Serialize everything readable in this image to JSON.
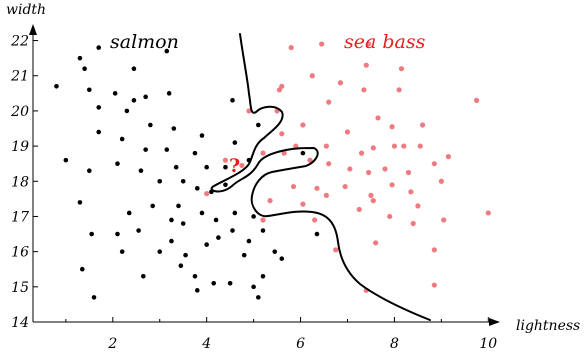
{
  "chart_data": {
    "type": "scatter",
    "xlabel": "lightness",
    "ylabel": "width",
    "xlim": [
      0.3,
      10.1
    ],
    "ylim": [
      14,
      22.3
    ],
    "x_ticks": [
      2,
      4,
      6,
      8,
      10
    ],
    "y_ticks": [
      14,
      15,
      16,
      17,
      18,
      19,
      20,
      21,
      22
    ],
    "grid": false,
    "annotations": [
      {
        "text": "salmon",
        "color": "#000000"
      },
      {
        "text": "sea bass",
        "color": "#e8201e"
      }
    ],
    "query_point": {
      "x": 4.42,
      "y": 18.15,
      "label": "?",
      "color": "#e8201e"
    },
    "series": [
      {
        "name": "salmon",
        "color": "#000000",
        "points": [
          [
            0.8,
            20.7
          ],
          [
            1.3,
            21.5
          ],
          [
            1.7,
            21.8
          ],
          [
            1.4,
            21.2
          ],
          [
            1.5,
            20.6
          ],
          [
            1.7,
            20.1
          ],
          [
            2.05,
            20.5
          ],
          [
            2.45,
            20.3
          ],
          [
            2.45,
            21.2
          ],
          [
            2.7,
            20.4
          ],
          [
            3.2,
            20.5
          ],
          [
            3.15,
            21.7
          ],
          [
            1.0,
            18.6
          ],
          [
            1.5,
            18.3
          ],
          [
            1.7,
            19.4
          ],
          [
            2.3,
            20.0
          ],
          [
            2.2,
            19.2
          ],
          [
            2.8,
            19.6
          ],
          [
            2.7,
            18.9
          ],
          [
            3.3,
            19.5
          ],
          [
            3.15,
            18.9
          ],
          [
            3.35,
            18.4
          ],
          [
            3.75,
            18.8
          ],
          [
            3.9,
            19.3
          ],
          [
            4.0,
            18.4
          ],
          [
            2.1,
            18.5
          ],
          [
            2.6,
            18.3
          ],
          [
            3.0,
            18.0
          ],
          [
            3.5,
            18.0
          ],
          [
            3.8,
            17.8
          ],
          [
            4.1,
            17.7
          ],
          [
            4.4,
            17.9
          ],
          [
            2.35,
            17.1
          ],
          [
            2.1,
            16.5
          ],
          [
            2.55,
            16.6
          ],
          [
            2.85,
            17.3
          ],
          [
            3.25,
            16.9
          ],
          [
            3.5,
            16.8
          ],
          [
            3.4,
            17.3
          ],
          [
            3.9,
            17.1
          ],
          [
            4.2,
            16.9
          ],
          [
            4.6,
            17.1
          ],
          [
            1.3,
            17.4
          ],
          [
            1.55,
            16.5
          ],
          [
            1.35,
            15.5
          ],
          [
            1.6,
            14.7
          ],
          [
            2.2,
            16.0
          ],
          [
            3.0,
            16.0
          ],
          [
            3.25,
            16.3
          ],
          [
            3.55,
            15.9
          ],
          [
            4.0,
            16.2
          ],
          [
            4.25,
            16.4
          ],
          [
            4.55,
            16.6
          ],
          [
            4.8,
            15.9
          ],
          [
            4.9,
            16.3
          ],
          [
            5.0,
            17.0
          ],
          [
            2.65,
            15.3
          ],
          [
            3.45,
            15.6
          ],
          [
            3.75,
            15.3
          ],
          [
            3.8,
            14.9
          ],
          [
            4.15,
            15.1
          ],
          [
            4.5,
            15.1
          ],
          [
            5.0,
            15.0
          ],
          [
            5.1,
            14.7
          ],
          [
            5.2,
            15.3
          ],
          [
            5.2,
            16.6
          ],
          [
            4.55,
            20.3
          ],
          [
            5.1,
            19.6
          ],
          [
            4.6,
            19.1
          ],
          [
            4.9,
            18.6
          ],
          [
            4.4,
            18.4
          ],
          [
            6.05,
            18.8
          ],
          [
            5.6,
            15.8
          ],
          [
            6.35,
            16.5
          ],
          [
            5.45,
            16.0
          ]
        ]
      },
      {
        "name": "sea bass",
        "color": "#f07a80",
        "points": [
          [
            5.8,
            21.8
          ],
          [
            6.45,
            21.9
          ],
          [
            7.45,
            21.9
          ],
          [
            5.6,
            20.7
          ],
          [
            6.25,
            21.0
          ],
          [
            6.85,
            20.8
          ],
          [
            7.4,
            21.3
          ],
          [
            7.35,
            20.6
          ],
          [
            8.15,
            21.2
          ],
          [
            5.55,
            20.6
          ],
          [
            6.6,
            20.25
          ],
          [
            7.65,
            19.8
          ],
          [
            8.1,
            20.6
          ],
          [
            9.75,
            20.3
          ],
          [
            5.5,
            20.0
          ],
          [
            4.9,
            20.0
          ],
          [
            5.6,
            19.35
          ],
          [
            6.05,
            19.6
          ],
          [
            6.55,
            19.0
          ],
          [
            7.0,
            19.4
          ],
          [
            7.3,
            18.8
          ],
          [
            7.55,
            18.95
          ],
          [
            7.95,
            19.55
          ],
          [
            8.2,
            19.0
          ],
          [
            8.0,
            19.0
          ],
          [
            8.6,
            19.6
          ],
          [
            8.55,
            19.0
          ],
          [
            5.9,
            19.0
          ],
          [
            6.2,
            18.6
          ],
          [
            6.6,
            18.5
          ],
          [
            7.05,
            18.35
          ],
          [
            7.45,
            18.25
          ],
          [
            7.8,
            18.35
          ],
          [
            8.3,
            18.25
          ],
          [
            8.85,
            18.5
          ],
          [
            9.15,
            18.7
          ],
          [
            5.85,
            17.85
          ],
          [
            6.35,
            17.8
          ],
          [
            6.95,
            17.85
          ],
          [
            7.5,
            17.6
          ],
          [
            7.95,
            17.9
          ],
          [
            8.35,
            17.7
          ],
          [
            9.0,
            18.0
          ],
          [
            5.35,
            17.45
          ],
          [
            6.05,
            17.35
          ],
          [
            6.55,
            17.6
          ],
          [
            7.25,
            17.2
          ],
          [
            7.55,
            17.45
          ],
          [
            7.9,
            17.0
          ],
          [
            8.5,
            17.3
          ],
          [
            9.05,
            16.9
          ],
          [
            10.0,
            17.1
          ],
          [
            8.4,
            16.8
          ],
          [
            5.2,
            16.9
          ],
          [
            6.3,
            16.9
          ],
          [
            6.75,
            16.05
          ],
          [
            7.6,
            16.25
          ],
          [
            8.85,
            16.05
          ],
          [
            7.4,
            14.9
          ],
          [
            8.85,
            15.05
          ],
          [
            4.0,
            17.65
          ],
          [
            4.4,
            18.6
          ],
          [
            5.2,
            18.8
          ],
          [
            4.75,
            18.45
          ],
          [
            5.65,
            18.8
          ]
        ]
      }
    ]
  }
}
